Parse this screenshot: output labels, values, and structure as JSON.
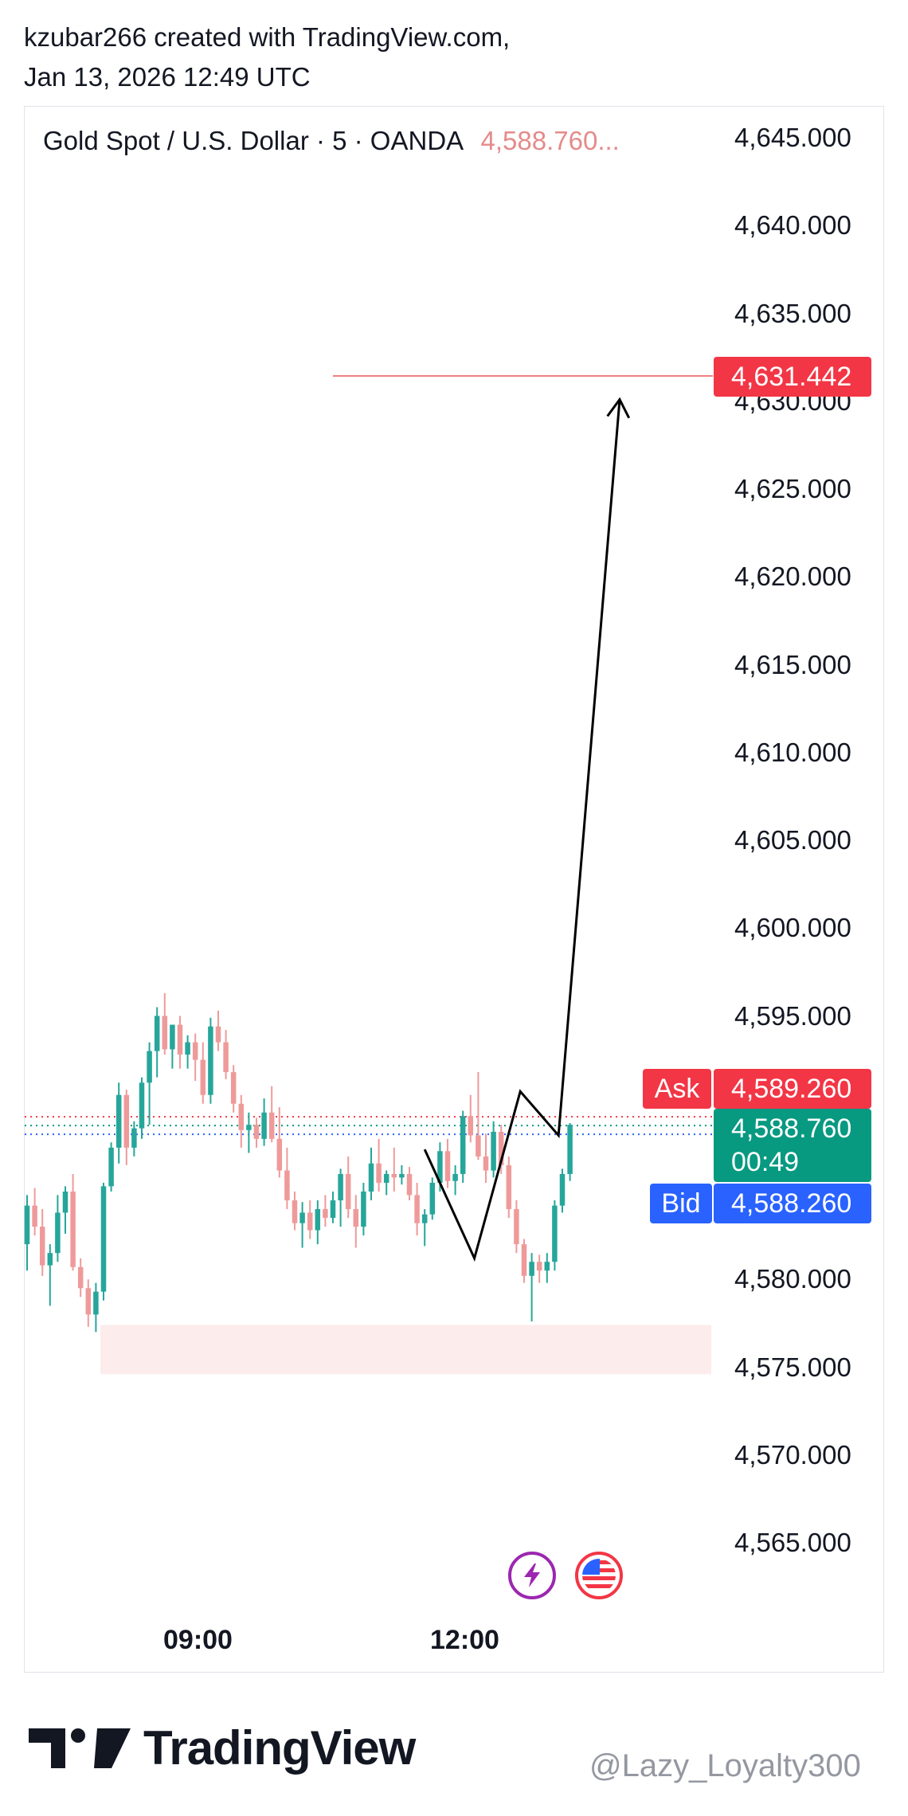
{
  "header": {
    "line1": "kzubar266 created with TradingView.com,",
    "line2": "Jan 13, 2026 12:49 UTC"
  },
  "symbol": {
    "name": "Gold Spot / U.S. Dollar · 5 · OANDA",
    "price": "4,588.760..."
  },
  "tags": {
    "target": "4,631.442",
    "ask_label": "Ask",
    "ask_value": "4,589.260",
    "last_value": "4,588.760",
    "countdown": "00:49",
    "bid_label": "Bid",
    "bid_value": "4,588.260"
  },
  "colors": {
    "up": "#26a69a",
    "down": "#ef9a9a",
    "ask": "#f23645",
    "bid": "#2962ff",
    "last": "#089981",
    "zone": "#fdecec",
    "target_line": "#f08080"
  },
  "icons": [
    "lightning-icon",
    "us-flag-icon"
  ],
  "branding": {
    "logo_text": "TradingView"
  },
  "watermark": "@Lazy_Loyalty300",
  "chart_data": {
    "type": "candlestick",
    "title": "Gold Spot / U.S. Dollar · 5 · OANDA",
    "y_tick_labels": [
      "4,645.000",
      "4,640.000",
      "4,635.000",
      "4,630.000",
      "4,625.000",
      "4,620.000",
      "4,615.000",
      "4,610.000",
      "4,605.000",
      "4,600.000",
      "4,595.000",
      "4,580.000",
      "4,575.000",
      "4,570.000",
      "4,565.000"
    ],
    "y_ticks": [
      4645,
      4640,
      4635,
      4630,
      4625,
      4620,
      4615,
      4610,
      4605,
      4600,
      4595,
      4580,
      4575,
      4570,
      4565
    ],
    "x_tick_labels": [
      "09:00",
      "12:00"
    ],
    "ylim": [
      4562,
      4647
    ],
    "grid": false,
    "candles": [
      [
        4582.0,
        4584.8,
        4580.5,
        4584.2
      ],
      [
        4584.2,
        4585.2,
        4582.5,
        4583.0
      ],
      [
        4583.0,
        4584.0,
        4580.2,
        4580.8
      ],
      [
        4580.8,
        4582.0,
        4578.5,
        4581.5
      ],
      [
        4581.5,
        4584.8,
        4581.0,
        4583.8
      ],
      [
        4583.8,
        4585.3,
        4582.6,
        4585.0
      ],
      [
        4585.0,
        4586.0,
        4580.5,
        4580.7
      ],
      [
        4580.7,
        4581.2,
        4579.0,
        4579.5
      ],
      [
        4579.5,
        4580.0,
        4577.3,
        4578.0
      ],
      [
        4578.0,
        4579.8,
        4577.0,
        4579.3
      ],
      [
        4579.3,
        4585.5,
        4578.8,
        4585.3
      ],
      [
        4585.3,
        4587.8,
        4585.0,
        4587.5
      ],
      [
        4587.5,
        4591.2,
        4586.6,
        4590.5
      ],
      [
        4590.5,
        4590.8,
        4586.5,
        4587.5
      ],
      [
        4587.5,
        4589.0,
        4587.0,
        4588.6
      ],
      [
        4588.6,
        4591.5,
        4588.0,
        4591.2
      ],
      [
        4591.2,
        4593.5,
        4588.8,
        4593.0
      ],
      [
        4593.0,
        4595.5,
        4591.5,
        4595.0
      ],
      [
        4595.0,
        4596.3,
        4592.8,
        4593.1
      ],
      [
        4593.1,
        4594.5,
        4592.0,
        4594.5
      ],
      [
        4594.5,
        4595.0,
        4592.0,
        4592.8
      ],
      [
        4592.8,
        4593.9,
        4592.0,
        4593.5
      ],
      [
        4593.5,
        4594.0,
        4591.3,
        4592.5
      ],
      [
        4592.5,
        4593.5,
        4590.0,
        4590.5
      ],
      [
        4590.5,
        4594.9,
        4590.0,
        4594.4
      ],
      [
        4594.4,
        4595.3,
        4593.0,
        4593.5
      ],
      [
        4593.5,
        4594.2,
        4591.4,
        4591.8
      ],
      [
        4591.8,
        4592.2,
        4589.5,
        4590.0
      ],
      [
        4590.0,
        4590.5,
        4587.5,
        4588.5
      ],
      [
        4588.5,
        4589.5,
        4587.2,
        4588.8
      ],
      [
        4588.8,
        4589.2,
        4587.5,
        4588.0
      ],
      [
        4588.0,
        4590.3,
        4587.6,
        4589.5
      ],
      [
        4589.5,
        4591.0,
        4587.8,
        4588.0
      ],
      [
        4588.0,
        4589.8,
        4585.8,
        4586.2
      ],
      [
        4586.2,
        4587.5,
        4584.0,
        4584.5
      ],
      [
        4584.5,
        4585.0,
        4582.8,
        4583.2
      ],
      [
        4583.2,
        4584.4,
        4581.8,
        4583.8
      ],
      [
        4583.8,
        4584.5,
        4582.3,
        4582.8
      ],
      [
        4582.8,
        4584.5,
        4582.0,
        4584.0
      ],
      [
        4584.0,
        4584.8,
        4583.0,
        4583.5
      ],
      [
        4583.5,
        4585.0,
        4583.2,
        4584.5
      ],
      [
        4584.5,
        4586.3,
        4583.0,
        4586.0
      ],
      [
        4586.0,
        4587.0,
        4583.5,
        4584.0
      ],
      [
        4584.0,
        4584.8,
        4581.8,
        4583.0
      ],
      [
        4583.0,
        4585.5,
        4582.5,
        4585.0
      ],
      [
        4585.0,
        4587.5,
        4584.5,
        4586.6
      ],
      [
        4586.6,
        4588.0,
        4585.0,
        4585.5
      ],
      [
        4585.5,
        4586.2,
        4584.8,
        4586.0
      ],
      [
        4586.0,
        4587.5,
        4585.0,
        4585.8
      ],
      [
        4585.8,
        4586.5,
        4585.4,
        4586.0
      ],
      [
        4586.0,
        4586.4,
        4584.5,
        4584.8
      ],
      [
        4584.8,
        4585.5,
        4582.5,
        4583.2
      ],
      [
        4583.2,
        4584.0,
        4581.9,
        4583.7
      ],
      [
        4583.7,
        4585.8,
        4583.4,
        4585.5
      ],
      [
        4585.5,
        4587.8,
        4585.0,
        4587.3
      ],
      [
        4587.3,
        4588.0,
        4585.2,
        4585.6
      ],
      [
        4585.6,
        4586.5,
        4584.8,
        4586.0
      ],
      [
        4586.0,
        4589.6,
        4585.5,
        4589.3
      ],
      [
        4589.3,
        4590.5,
        4587.8,
        4588.2
      ],
      [
        4588.2,
        4591.8,
        4586.8,
        4587.0
      ],
      [
        4587.0,
        4588.3,
        4585.5,
        4586.2
      ],
      [
        4586.2,
        4589.0,
        4585.8,
        4588.4
      ],
      [
        4588.4,
        4588.8,
        4586.0,
        4586.5
      ],
      [
        4586.5,
        4587.0,
        4583.5,
        4584.0
      ],
      [
        4584.0,
        4584.5,
        4581.5,
        4582.0
      ],
      [
        4582.0,
        4582.3,
        4579.8,
        4580.2
      ],
      [
        4580.2,
        4581.5,
        4577.6,
        4581.0
      ],
      [
        4581.0,
        4581.4,
        4579.8,
        4580.5
      ],
      [
        4580.5,
        4581.5,
        4579.8,
        4581.0
      ],
      [
        4581.0,
        4584.5,
        4580.5,
        4584.2
      ],
      [
        4584.2,
        4586.3,
        4583.8,
        4586.0
      ],
      [
        4586.0,
        4588.9,
        4585.6,
        4588.8
      ]
    ],
    "current_price": {
      "ask": 4589.26,
      "last": 4588.76,
      "bid": 4588.26
    },
    "target_level": 4631.442,
    "support_zone": [
      4574.6,
      4577.4
    ],
    "projection_path": [
      {
        "x_index": 52,
        "y": 4587.4
      },
      {
        "x_index": 58.5,
        "y": 4581.2
      },
      {
        "x_index": 64.5,
        "y": 4590.7
      },
      {
        "x_index": 69.5,
        "y": 4588.2
      },
      {
        "x_index": 77.5,
        "y": 4630.1
      }
    ]
  }
}
